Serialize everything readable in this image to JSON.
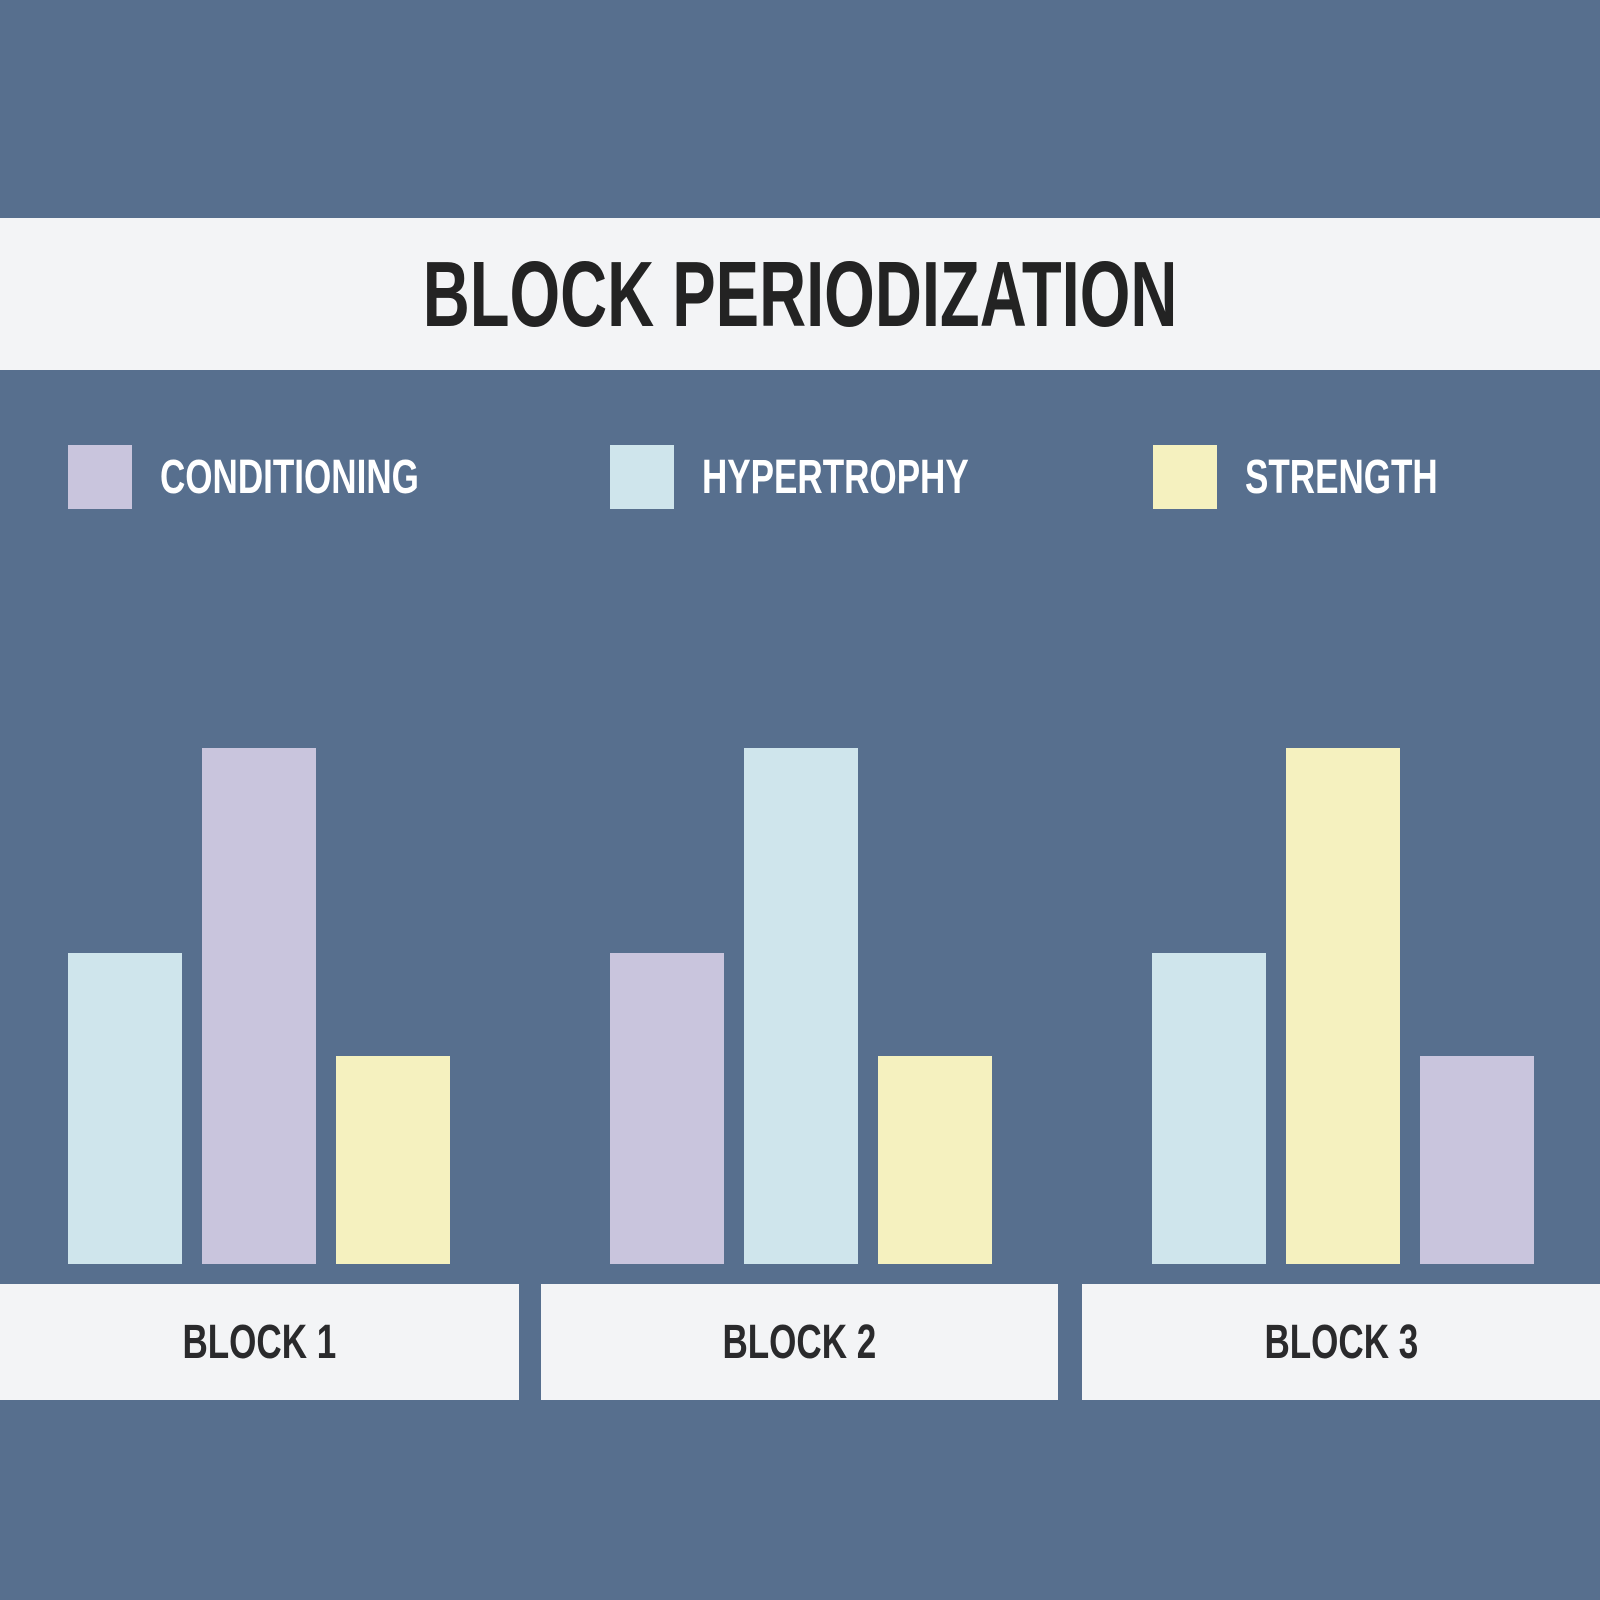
{
  "title": "BLOCK PERIODIZATION",
  "colors": {
    "background": "#576F8E",
    "band_background": "#F3F4F6",
    "conditioning": "#C9C5DD",
    "hypertrophy": "#CFE5EC",
    "strength": "#F5F1BF",
    "title_text": "#232323",
    "block_label_text": "#2A2A2C",
    "legend_text": "#FFFFFF"
  },
  "legend": [
    {
      "label": "CONDITIONING",
      "color": "#C9C5DD"
    },
    {
      "label": "HYPERTROPHY",
      "color": "#CFE5EC"
    },
    {
      "label": "STRENGTH",
      "color": "#F5F1BF"
    }
  ],
  "blocks": [
    {
      "label": "BLOCK 1"
    },
    {
      "label": "BLOCK 2"
    },
    {
      "label": "BLOCK 3"
    }
  ],
  "chart_data": {
    "type": "bar",
    "title": "BLOCK PERIODIZATION",
    "categories": [
      "BLOCK 1",
      "BLOCK 2",
      "BLOCK 3"
    ],
    "series": [
      {
        "name": "CONDITIONING",
        "values": [
          516,
          311,
          208
        ],
        "levels": [
          "high",
          "medium",
          "low"
        ]
      },
      {
        "name": "HYPERTROPHY",
        "values": [
          311,
          516,
          311
        ],
        "levels": [
          "medium",
          "high",
          "medium"
        ]
      },
      {
        "name": "STRENGTH",
        "values": [
          208,
          208,
          516
        ],
        "levels": [
          "low",
          "low",
          "high"
        ]
      }
    ],
    "bar_order_per_block": [
      [
        "HYPERTROPHY",
        "CONDITIONING",
        "STRENGTH"
      ],
      [
        "CONDITIONING",
        "HYPERTROPHY",
        "STRENGTH"
      ],
      [
        "HYPERTROPHY",
        "STRENGTH",
        "CONDITIONING"
      ]
    ],
    "value_unit": "bar height in px (no numeric axis shown in image)",
    "ylim": [
      0,
      560
    ],
    "grid": false,
    "legend_position": "top",
    "xlabel": "",
    "ylabel": ""
  }
}
